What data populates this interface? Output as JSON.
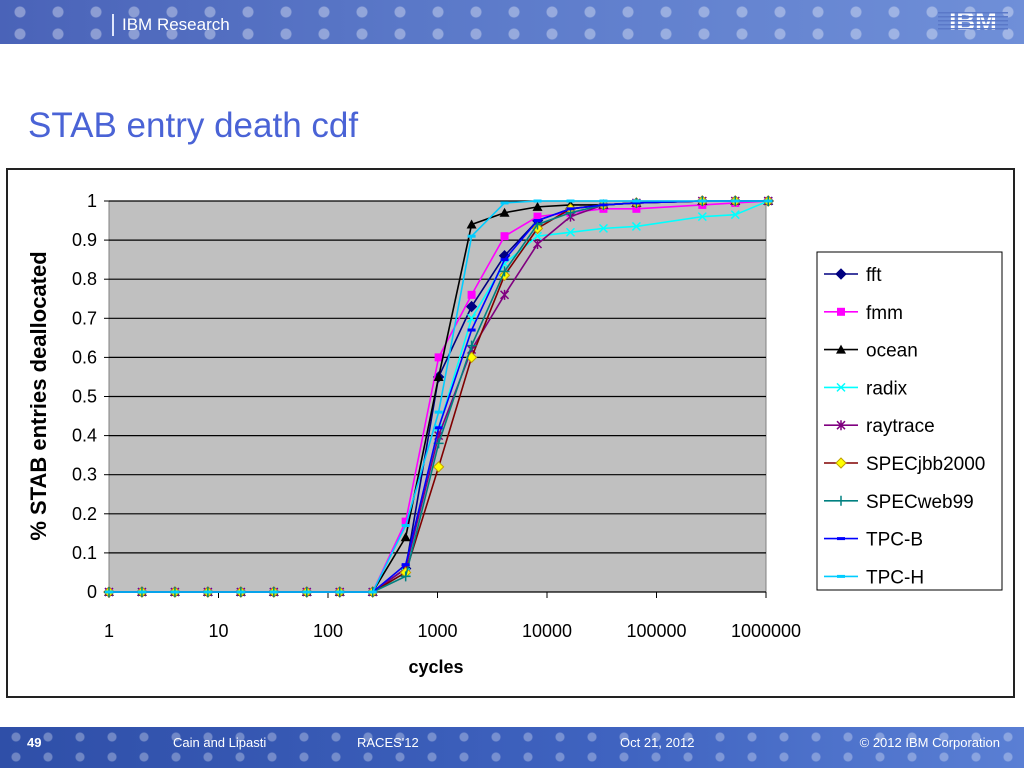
{
  "header": {
    "title": "IBM Research",
    "logo_text": "IBM"
  },
  "slide": {
    "title": "STAB entry death cdf"
  },
  "footer": {
    "page": "49",
    "authors": "Cain and Lipasti",
    "conference": "RACES'12",
    "date": "Oct 21, 2012",
    "copyright": "© 2012 IBM Corporation"
  },
  "chart_data": {
    "type": "line",
    "title": "",
    "xlabel": "cycles",
    "ylabel": "% STAB entries deallocated",
    "x_scale": "log",
    "x_ticks": [
      "1",
      "10",
      "100",
      "1000",
      "10000",
      "100000",
      "1000000"
    ],
    "y_ticks": [
      "0",
      "0.1",
      "0.2",
      "0.3",
      "0.4",
      "0.5",
      "0.6",
      "0.7",
      "0.8",
      "0.9",
      "1"
    ],
    "ylim": [
      0,
      1
    ],
    "xlim": [
      1,
      1000000
    ],
    "grid": "horizontal",
    "legend": "right",
    "plot_background": "#c0c0c0",
    "x": [
      1,
      2,
      4,
      8,
      16,
      32,
      64,
      128,
      256,
      512,
      1024,
      2048,
      4096,
      8192,
      16384,
      32768,
      65536,
      262144,
      524288,
      1048576
    ],
    "series": [
      {
        "name": "fft",
        "color": "#000080",
        "marker": "diamond",
        "values": [
          0,
          0,
          0,
          0,
          0,
          0,
          0,
          0,
          0,
          0.06,
          0.55,
          0.73,
          0.86,
          0.95,
          0.98,
          0.99,
          0.995,
          1,
          1,
          1
        ]
      },
      {
        "name": "fmm",
        "color": "#ff00ff",
        "marker": "square",
        "values": [
          0,
          0,
          0,
          0,
          0,
          0,
          0,
          0,
          0,
          0.18,
          0.6,
          0.76,
          0.91,
          0.96,
          0.97,
          0.98,
          0.98,
          0.99,
          0.995,
          1
        ]
      },
      {
        "name": "ocean",
        "color": "#000000",
        "marker": "triangle",
        "values": [
          0,
          0,
          0,
          0,
          0,
          0,
          0,
          0,
          0,
          0.14,
          0.55,
          0.94,
          0.97,
          0.985,
          0.99,
          0.99,
          0.995,
          1,
          1,
          1
        ]
      },
      {
        "name": "radix",
        "color": "#00ffff",
        "marker": "x",
        "values": [
          0,
          0,
          0,
          0,
          0,
          0,
          0,
          0,
          0,
          0.05,
          0.42,
          0.7,
          0.84,
          0.91,
          0.92,
          0.93,
          0.935,
          0.96,
          0.965,
          1
        ]
      },
      {
        "name": "raytrace",
        "color": "#800080",
        "marker": "star",
        "values": [
          0,
          0,
          0,
          0,
          0,
          0,
          0,
          0,
          0,
          0.06,
          0.4,
          0.62,
          0.76,
          0.89,
          0.96,
          0.99,
          0.995,
          1,
          1,
          1
        ]
      },
      {
        "name": "SPECjbb2000",
        "color": "#800000",
        "marker": "diamond-yellow",
        "values": [
          0,
          0,
          0,
          0,
          0,
          0,
          0,
          0,
          0,
          0.05,
          0.32,
          0.6,
          0.81,
          0.93,
          0.98,
          0.99,
          0.995,
          1,
          1,
          1
        ]
      },
      {
        "name": "SPECweb99",
        "color": "#008080",
        "marker": "plus",
        "values": [
          0,
          0,
          0,
          0,
          0,
          0,
          0,
          0,
          0,
          0.04,
          0.38,
          0.63,
          0.82,
          0.94,
          0.97,
          0.99,
          0.995,
          1,
          1,
          1
        ]
      },
      {
        "name": "TPC-B",
        "color": "#0000ff",
        "marker": "dash",
        "values": [
          0,
          0,
          0,
          0,
          0,
          0,
          0,
          0,
          0,
          0.07,
          0.42,
          0.67,
          0.85,
          0.95,
          0.98,
          0.99,
          0.995,
          1,
          1,
          1
        ]
      },
      {
        "name": "TPC-H",
        "color": "#00ccff",
        "marker": "dash",
        "values": [
          0,
          0,
          0,
          0,
          0,
          0,
          0,
          0,
          0,
          0.17,
          0.46,
          0.91,
          0.995,
          1,
          1,
          1,
          1,
          1,
          1,
          1
        ]
      }
    ]
  }
}
